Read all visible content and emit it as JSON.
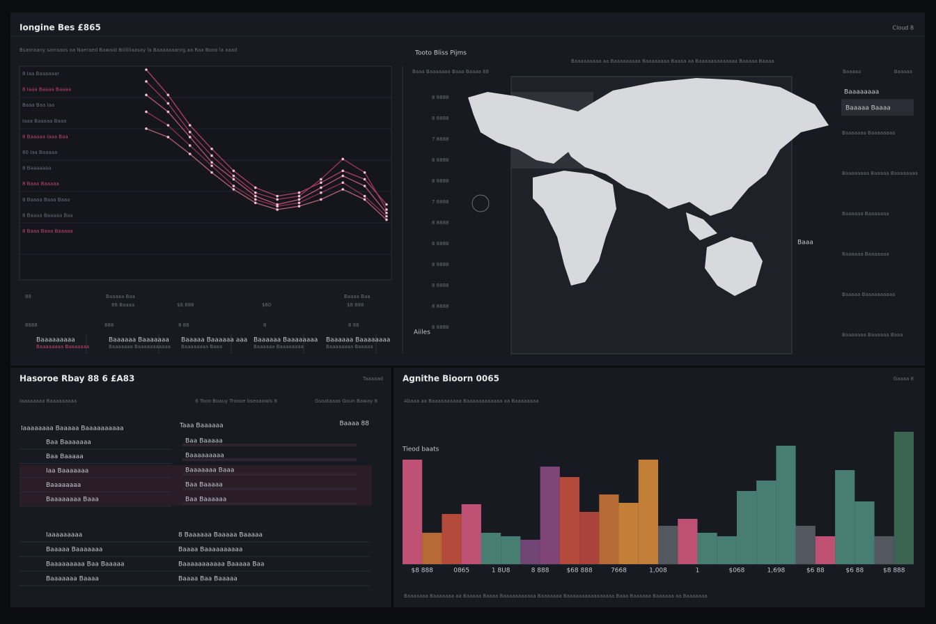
{
  "header": {
    "title": "Iongine Bes £865",
    "action": "Cloud 8"
  },
  "line_panel": {
    "subtitle": "Bsaoraany sarraaos oa Naeraed Bawaid Biiililiaasay la Baaaaaaanrg aa Raa Booo la aaad",
    "legend": [
      "8 Iaa Baaaaaar",
      "8 Iaaa Baaaa Baaaa",
      "Baaa Baa Iaa",
      "Iaaa Baaaaa Baaa",
      "8 Baaaaa Iaaa Baa",
      "80 Iaa Baaaaa",
      "8 Baaaaaaa",
      "8 Baaa Baaaaa",
      "8 Baaaa Baaa Baaa",
      "8 Baaaa Baaaaa Baa",
      "8 Baaa Baaa Baaaaa"
    ],
    "series": [
      {
        "color": "#c2476f",
        "values": [
          95,
          80,
          62,
          48,
          35,
          25,
          20,
          22,
          28,
          35,
          30,
          15
        ]
      },
      {
        "color": "#b03c63",
        "values": [
          88,
          75,
          58,
          44,
          32,
          22,
          18,
          20,
          30,
          42,
          34,
          12
        ]
      },
      {
        "color": "#d05a80",
        "values": [
          80,
          70,
          55,
          40,
          30,
          20,
          15,
          18,
          25,
          32,
          26,
          10
        ]
      },
      {
        "color": "#9e3658",
        "values": [
          70,
          62,
          50,
          38,
          26,
          18,
          14,
          16,
          22,
          28,
          20,
          8
        ]
      },
      {
        "color": "#c96a7e",
        "values": [
          60,
          55,
          45,
          34,
          24,
          16,
          12,
          14,
          18,
          24,
          18,
          6
        ]
      }
    ],
    "stats_top": [
      "88",
      "Baaaaa Baa",
      "88 Baaaa",
      "$8 888",
      "$60",
      "Baaaa Baa",
      "$8 888"
    ],
    "stats_bottom": [
      "8888",
      "888",
      "8 88",
      "8",
      "8 88"
    ],
    "tabs": [
      {
        "title": "Baaaaaaaaa",
        "sub": "Baaaaaaaa Baaaaaaa"
      },
      {
        "title": "Baaaaaa Baaaaaaa",
        "sub": "Baaaaaaa Baaaaaaaaaaa"
      },
      {
        "title": "Baaaaa Baaaaaa aaa",
        "sub": "Baaaaaaaa Baaa"
      },
      {
        "title": "Baaaaaa Baaaaaaaa",
        "sub": "Baaaaaa Baaaaaaaa"
      },
      {
        "title": "Baaaaaa Baaaaaaaa",
        "sub": "Baaaaaaaa Baaaaa"
      }
    ]
  },
  "map_panel": {
    "title": "Tooto Bliss Pijms",
    "subtitle": "Baaaaaaaaa aa Baaaaaaaaa Baaaaaaaa Baaaa aa Baaaaaaaaaaaaa Baaaaa Baaaa",
    "caption": "Baaa Baaaaaaa Baaa Baaaa 88",
    "yticks": [
      "8 8888",
      "8 8888",
      "7 8888",
      "8 8888",
      "8 8888",
      "7 8888",
      "8 8888",
      "8 8888",
      "8 8888",
      "8 8888",
      "8 8888",
      "8 8888"
    ],
    "corner": "Aiiles",
    "marker": "Baaa",
    "sidebar_head": [
      "Baaaaa",
      "Baaaaa"
    ],
    "sidebar_tab": "Baaaaaaaa",
    "sidebar_selected": "Baaaaa Baaaa",
    "sidebar": [
      "Baaaaaaa Baaaaaaaa",
      "Baaaaaaaa Baaaaa Baaaaaaaa",
      "Baaaaaa Baaaaaaa",
      "Baaaaaa Baaaaaaa",
      "Baaaaa Baaaaaaaaaa",
      "Baaaaaaa Baaaaaa Baaa"
    ]
  },
  "list_panel": {
    "title": "Hasoroe Rbay 88 6 £A83",
    "action": "Taaaaad",
    "filters": [
      "Iaaaaaaaa Baaaaaaaaa",
      "6 Tooo Boauy Troooe bseoaowis 8",
      "Gsoataaas Goun Baway 8"
    ],
    "col_left": "Iaaaaaaaa Baaaaa Baaaaaaaaaa",
    "col_right": "Taaa Baaaaaa",
    "col_value": "Baaaa 88",
    "rows_left": [
      "Baa Baaaaaaa",
      "Baa Baaaaa",
      "Iaa Baaaaaaa",
      "Baaaaaaaa",
      "Baaaaaaaa Baaa"
    ],
    "rows_right": [
      "Baa Baaaaa",
      "Baaaaaaaaa",
      "Baaaaaaa Baaa",
      "Baa Baaaaa",
      "Baa Baaaaaa"
    ],
    "rows_bottom": [
      "Iaaaaaaaaa",
      "Baaaaa Baaaaaaa",
      "Baaaaaaaaa Baa Baaaaa",
      "Baaaaaaa Baaaa"
    ],
    "rows_bottom_right": [
      "8 Baaaaaa Baaaaa Baaaaa",
      "Baaaa Baaaaaaaaaa",
      "Baaaaaaaaaaa Baaaaa Baa",
      "Baaaa Baa Baaaaa"
    ]
  },
  "bar_panel": {
    "title": "Agnithe Bioorn 0065",
    "action": "Gaaaa 8",
    "subtitle": "Abaaa aa Baaaaaaaaaa Baaaaaaaaaaaa aa Baaaaaaaa",
    "legend_title": "Tieod baats",
    "footnote": "Baaaaaaa Baaaaaaa aa Baaaaa Baaaa Baaaaaaaaaaa Baaaaaaa Baaaaaaaaaaaaaaaa Baaa Baaaaaa Baaaaaa aa Baaaaaaa",
    "categories": [
      "$8 888",
      "0865",
      "1 8U8",
      "8 888",
      "$68 888",
      "7668",
      "1,008",
      "1",
      "$068",
      "1,698",
      "$6 88",
      "$6 88",
      "$8 888"
    ],
    "values": [
      150,
      45,
      72,
      86,
      45,
      40,
      35,
      140,
      125,
      75,
      100,
      88,
      150,
      55,
      65,
      45,
      40,
      105,
      120,
      170,
      55,
      40,
      135,
      90,
      40,
      190
    ],
    "colors": [
      "#d1587d",
      "#c8743a",
      "#c4503e",
      "#d1587d",
      "#4d8a7a",
      "#4d8a7a",
      "#7a4a7e",
      "#8a4a80",
      "#c4503e",
      "#b9483f",
      "#c8743a",
      "#d68a3a",
      "#d68a3a",
      "#5a5e66",
      "#d1587d",
      "#4d8a7a",
      "#4d8a7a",
      "#4d8a7a",
      "#4d8a7a",
      "#4d8a7a",
      "#5a5e66",
      "#d1587d",
      "#4d8a7a",
      "#4d8a7a",
      "#5a5e66",
      "#3f6e55"
    ]
  }
}
